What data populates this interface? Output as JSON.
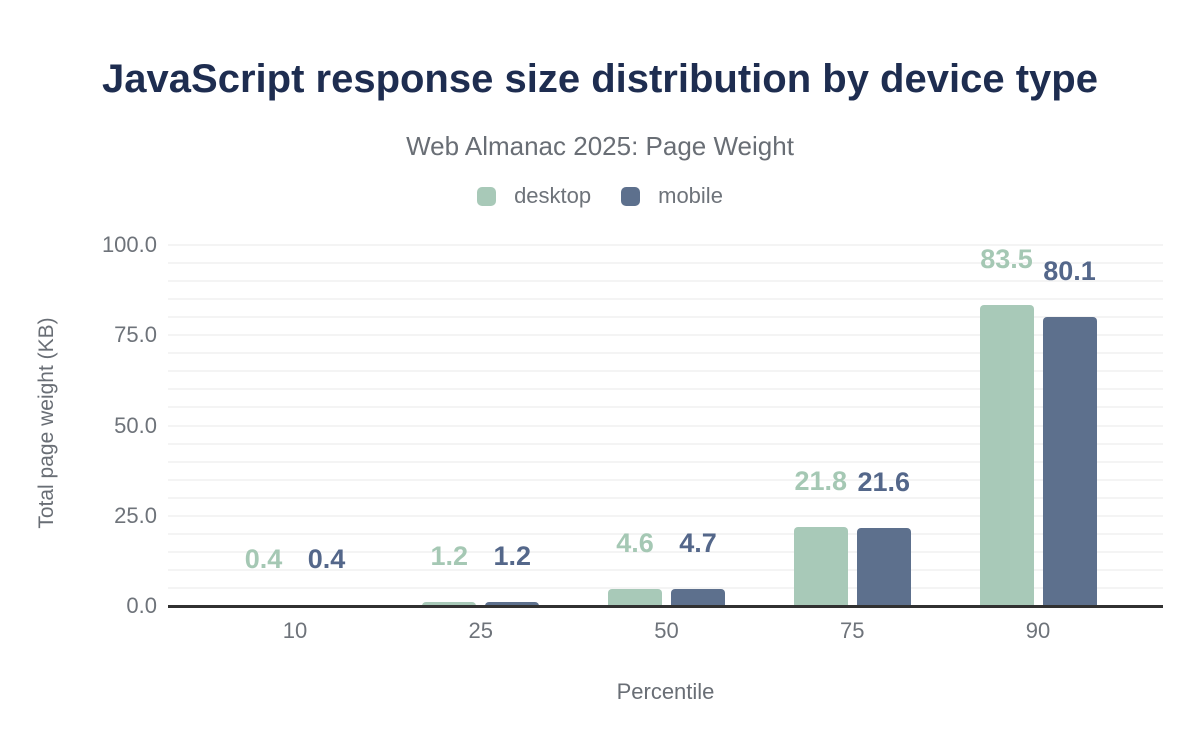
{
  "chart_data": {
    "type": "bar",
    "title": "JavaScript response size distribution by device type",
    "subtitle": "Web Almanac 2025: Page Weight",
    "categories": [
      "10",
      "25",
      "50",
      "75",
      "90"
    ],
    "series": [
      {
        "name": "desktop",
        "color": "#a8c9b8",
        "label_color": "#a5c8b4",
        "values": [
          0.4,
          1.2,
          4.6,
          21.8,
          83.5
        ]
      },
      {
        "name": "mobile",
        "color": "#5d708d",
        "label_color": "#54678a",
        "values": [
          0.4,
          1.2,
          4.7,
          21.6,
          80.1
        ]
      }
    ],
    "xlabel": "Percentile",
    "ylabel": "Total page weight (KB)",
    "ylim": [
      0,
      100
    ],
    "yticks": [
      0,
      25,
      50,
      75,
      100
    ],
    "ytick_labels": [
      "0.0",
      "25.0",
      "50.0",
      "75.0",
      "100.0"
    ],
    "minor_gridline_step": 5,
    "grid": "on",
    "legend_position": "top",
    "value_labels": "outside, one decimal place, colored per series"
  },
  "colors": {
    "background": "#ffffff",
    "title_text": "#1e2d50",
    "subtitle_text": "#696e75",
    "axis_text": "#6e737a",
    "axis_line": "#313131",
    "gridline": "#f4f4f4"
  }
}
